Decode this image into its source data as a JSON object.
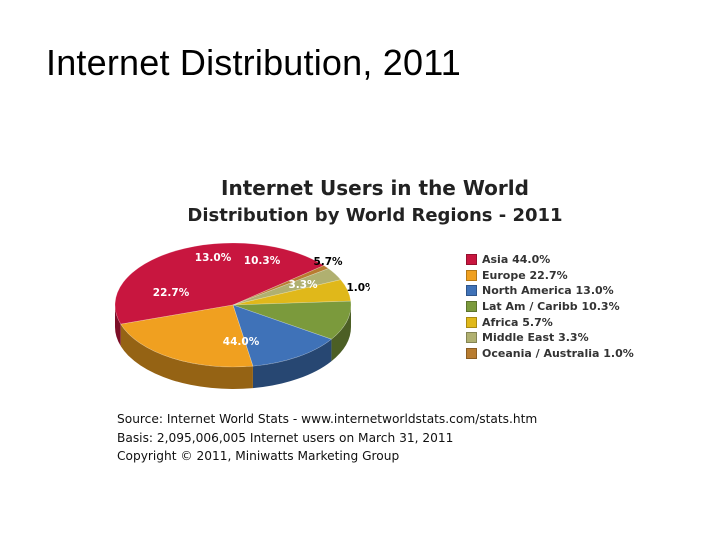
{
  "slide": {
    "title": "Internet Distribution, 2011"
  },
  "chart_data": {
    "type": "pie",
    "title": "Internet Users in the World",
    "subtitle": "Distribution by World Regions - 2011",
    "categories": [
      "Asia",
      "Europe",
      "North America",
      "Lat Am / Caribb",
      "Africa",
      "Middle East",
      "Oceania / Australia"
    ],
    "values": [
      44.0,
      22.7,
      13.0,
      10.3,
      5.7,
      3.3,
      1.0
    ],
    "value_labels": [
      "44.0%",
      "22.7%",
      "13.0%",
      "10.3%",
      "5.7%",
      "3.3%",
      "1.0%"
    ],
    "legend_labels": [
      "Asia  44.0%",
      "Europe  22.7%",
      "North America  13.0%",
      "Lat Am / Caribb  10.3%",
      "Africa  5.7%",
      "Middle East  3.3%",
      "Oceania / Australia  1.0%"
    ],
    "colors": [
      "#c8163f",
      "#f0a020",
      "#3f72b8",
      "#7b9a3c",
      "#e0b81a",
      "#b0b070",
      "#b87c30"
    ],
    "legend_position": "right",
    "style": "3d"
  },
  "source": {
    "line1": "Source: Internet World Stats -  www.internetworldstats.com/stats.htm",
    "line2": "Basis: 2,095,006,005 Internet users on March 31, 2011",
    "line3": "Copyright © 2011, Miniwatts Marketing Group"
  }
}
